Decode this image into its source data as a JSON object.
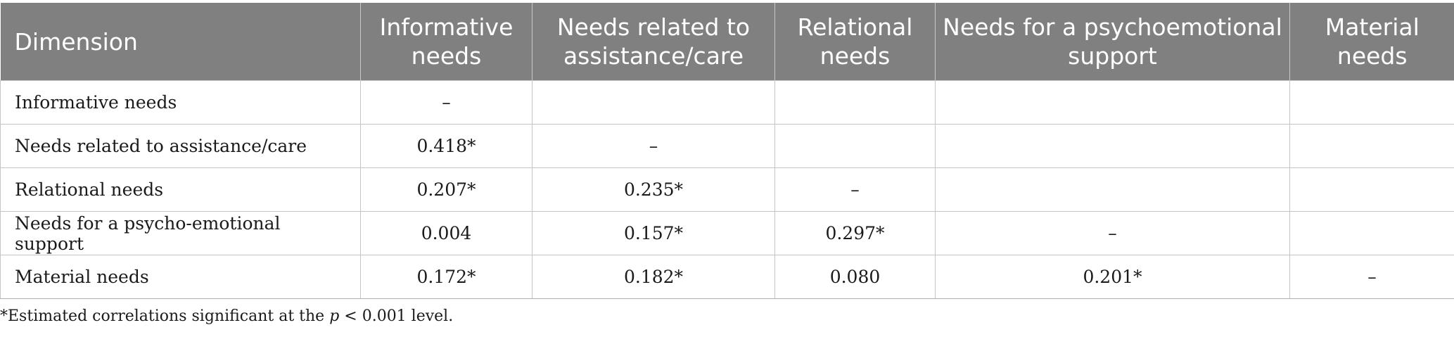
{
  "table": {
    "headers": [
      "Dimension",
      "Informative needs",
      "Needs related to assistance/care",
      "Relational needs",
      "Needs for a psychoemotional support",
      "Material needs"
    ],
    "rows": [
      [
        "Informative needs",
        "–",
        "",
        "",
        "",
        ""
      ],
      [
        "Needs related to assistance/care",
        "0.418*",
        "–",
        "",
        "",
        ""
      ],
      [
        "Relational needs",
        "0.207*",
        "0.235*",
        "–",
        "",
        ""
      ],
      [
        "Needs for a psycho-emotional support",
        "0.004",
        "0.157*",
        "0.297*",
        "–",
        ""
      ],
      [
        "Material needs",
        "0.172*",
        "0.182*",
        "0.080",
        "0.201*",
        "–"
      ]
    ]
  },
  "footnote": {
    "prefix": "*Estimated correlations significant at the ",
    "italic": "p",
    "suffix": " < 0.001 level."
  }
}
